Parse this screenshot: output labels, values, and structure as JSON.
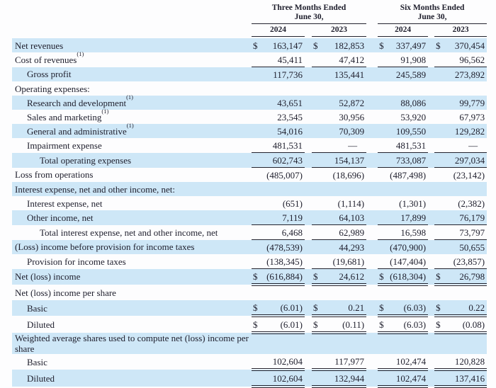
{
  "meta": {
    "highlight_color": "#cee7f7",
    "text_color": "#1e1e2c",
    "rule_color": "#23232e",
    "currency_symbol": "$",
    "em_dash": "—"
  },
  "table": {
    "currency_symbol": "$",
    "column_groups": [
      {
        "title": "Three Months Ended\nJune 30,",
        "years": [
          "2024",
          "2023"
        ]
      },
      {
        "title": "Six Months Ended\nJune 30,",
        "years": [
          "2024",
          "2023"
        ]
      }
    ],
    "rows": [
      {
        "label": "Net revenues",
        "sup": "",
        "indent": 0,
        "dollar": true,
        "shaded": true,
        "rule": "none",
        "values": [
          "163,147",
          "182,853",
          "337,497",
          "370,454"
        ]
      },
      {
        "label": "Cost of revenues",
        "sup": "(1)",
        "indent": 0,
        "dollar": false,
        "shaded": false,
        "rule": "single",
        "values": [
          "45,411",
          "47,412",
          "91,908",
          "96,562"
        ]
      },
      {
        "label": "Gross profit",
        "sup": "",
        "indent": 1,
        "dollar": false,
        "shaded": true,
        "rule": "none",
        "values": [
          "117,736",
          "135,441",
          "245,589",
          "273,892"
        ]
      },
      {
        "label": "Operating expenses:",
        "sup": "",
        "indent": 0,
        "dollar": false,
        "shaded": false,
        "rule": "none",
        "values": null
      },
      {
        "label": "Research and development",
        "sup": "(1)",
        "indent": 1,
        "dollar": false,
        "shaded": true,
        "rule": "none",
        "values": [
          "43,651",
          "52,872",
          "88,086",
          "99,779"
        ]
      },
      {
        "label": "Sales and marketing",
        "sup": "(1)",
        "indent": 1,
        "dollar": false,
        "shaded": false,
        "rule": "none",
        "values": [
          "23,545",
          "30,956",
          "53,920",
          "67,973"
        ]
      },
      {
        "label": "General and administrative",
        "sup": "(1)",
        "indent": 1,
        "dollar": false,
        "shaded": true,
        "rule": "none",
        "values": [
          "54,016",
          "70,309",
          "109,550",
          "129,282"
        ]
      },
      {
        "label": "Impairment expense",
        "sup": "",
        "indent": 1,
        "dollar": false,
        "shaded": false,
        "rule": "single",
        "values": [
          "481,531",
          "—",
          "481,531",
          "—"
        ]
      },
      {
        "label": "Total operating expenses",
        "sup": "",
        "indent": 2,
        "dollar": false,
        "shaded": true,
        "rule": "single",
        "values": [
          "602,743",
          "154,137",
          "733,087",
          "297,034"
        ]
      },
      {
        "label": "Loss from operations",
        "sup": "",
        "indent": 0,
        "dollar": false,
        "shaded": false,
        "rule": "none",
        "values": [
          "(485,007)",
          "(18,696)",
          "(487,498)",
          "(23,142)"
        ]
      },
      {
        "label": "Interest expense, net and other income, net:",
        "sup": "",
        "indent": 0,
        "dollar": false,
        "shaded": true,
        "rule": "none",
        "values": null
      },
      {
        "label": "Interest expense, net",
        "sup": "",
        "indent": 1,
        "dollar": false,
        "shaded": false,
        "rule": "none",
        "values": [
          "(651)",
          "(1,114)",
          "(1,301)",
          "(2,382)"
        ]
      },
      {
        "label": "Other income, net",
        "sup": "",
        "indent": 1,
        "dollar": false,
        "shaded": true,
        "rule": "single",
        "values": [
          "7,119",
          "64,103",
          "17,899",
          "76,179"
        ]
      },
      {
        "label": "Total interest expense, net and other income, net",
        "sup": "",
        "indent": 2,
        "dollar": false,
        "shaded": false,
        "rule": "single",
        "values": [
          "6,468",
          "62,989",
          "16,598",
          "73,797"
        ]
      },
      {
        "label": "(Loss) income before provision for income taxes",
        "sup": "",
        "indent": 0,
        "dollar": false,
        "shaded": true,
        "rule": "none",
        "values": [
          "(478,539)",
          "44,293",
          "(470,900)",
          "50,655"
        ]
      },
      {
        "label": "Provision for income taxes",
        "sup": "",
        "indent": 1,
        "dollar": false,
        "shaded": false,
        "rule": "single",
        "values": [
          "(138,345)",
          "(19,681)",
          "(147,404)",
          "(23,857)"
        ]
      },
      {
        "label": "Net (loss) income",
        "sup": "",
        "indent": 0,
        "dollar": true,
        "shaded": true,
        "rule": "double",
        "values": [
          "(616,884)",
          "24,612",
          "(618,304)",
          "26,798"
        ]
      },
      {
        "label": "Net (loss) income per share",
        "sup": "",
        "indent": 0,
        "dollar": false,
        "shaded": false,
        "rule": "none",
        "values": null
      },
      {
        "label": "Basic",
        "sup": "",
        "indent": 1,
        "dollar": true,
        "shaded": true,
        "rule": "double",
        "values": [
          "(6.01)",
          "0.21",
          "(6.03)",
          "0.22"
        ]
      },
      {
        "label": "Diluted",
        "sup": "",
        "indent": 1,
        "dollar": true,
        "shaded": false,
        "rule": "double",
        "values": [
          "(6.01)",
          "(0.11)",
          "(6.03)",
          "(0.08)"
        ]
      },
      {
        "label": "Weighted average shares used to compute net (loss) income per share",
        "sup": "",
        "indent": 0,
        "dollar": false,
        "shaded": true,
        "rule": "none",
        "values": null
      },
      {
        "label": "Basic",
        "sup": "",
        "indent": 1,
        "dollar": false,
        "shaded": false,
        "rule": "double",
        "values": [
          "102,604",
          "117,977",
          "102,474",
          "120,828"
        ]
      },
      {
        "label": "Diluted",
        "sup": "",
        "indent": 1,
        "dollar": false,
        "shaded": true,
        "rule": "double",
        "values": [
          "102,604",
          "132,944",
          "102,474",
          "137,416"
        ]
      }
    ]
  }
}
